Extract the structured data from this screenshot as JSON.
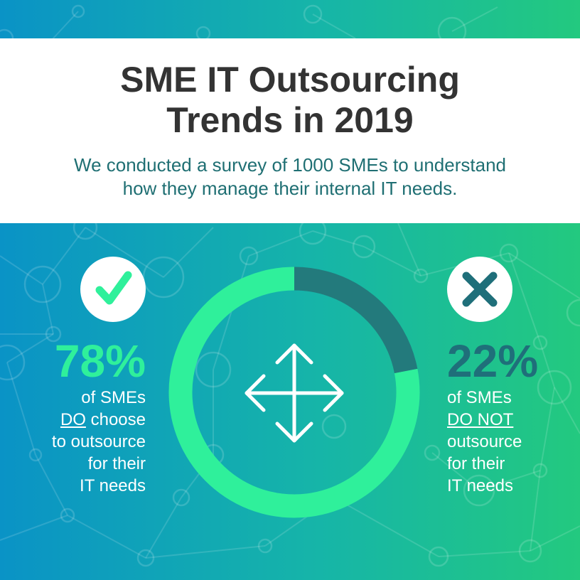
{
  "header": {
    "title_line1": "SME IT Outsourcing",
    "title_line2": "Trends in 2019",
    "subtitle_line1": "We conducted a survey of 1000 SMEs to understand",
    "subtitle_line2": "how they manage their internal IT needs."
  },
  "left_stat": {
    "percent": "78%",
    "line1": "of SMEs",
    "emphasis": "DO",
    "line2_rest": " choose",
    "line3": "to outsource",
    "line4": "for their",
    "line5": "IT needs",
    "icon": "checkmark-icon"
  },
  "right_stat": {
    "percent": "22%",
    "line1": "of SMEs",
    "emphasis": "DO NOT",
    "line3": "outsource",
    "line4": "for their",
    "line5": "IT needs",
    "icon": "cross-icon"
  },
  "center_icon": "move-arrows-icon",
  "colors": {
    "do_outsource": "#2ff09b",
    "do_not_outsource": "#237a7c",
    "title": "#333333",
    "subtitle": "#1f6f73"
  },
  "chart_data": {
    "type": "pie",
    "donut": true,
    "title": "",
    "categories": [
      "DO outsource",
      "DO NOT outsource"
    ],
    "values": [
      78,
      22
    ],
    "unit": "%",
    "start_at": "top",
    "direction": "clockwise",
    "order": [
      "DO NOT outsource",
      "DO outsource"
    ]
  }
}
